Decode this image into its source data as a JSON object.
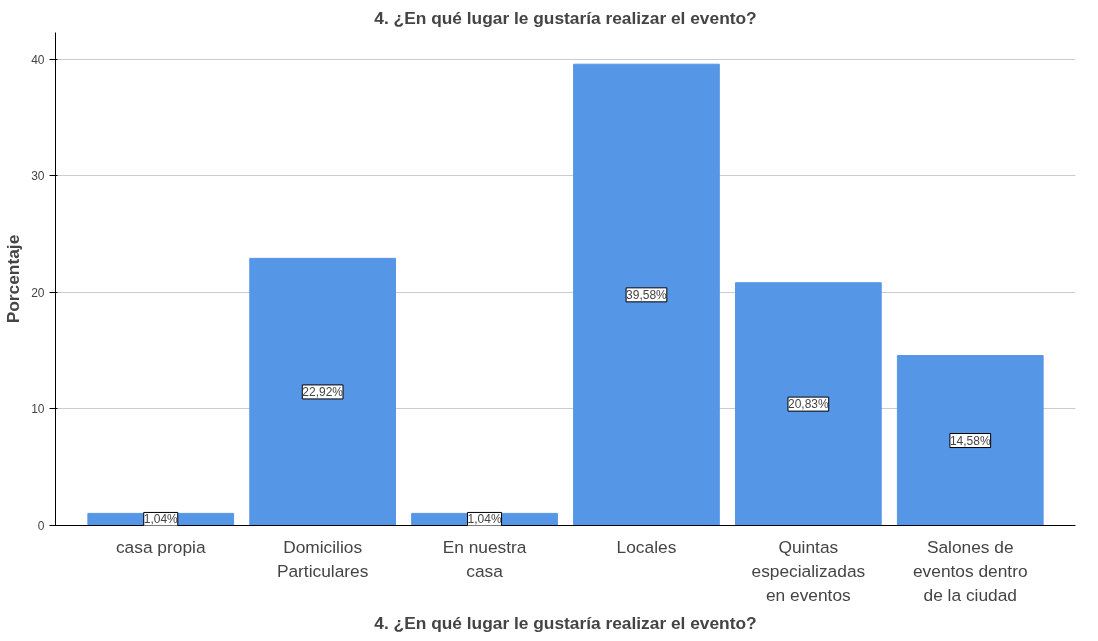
{
  "chart_data": {
    "type": "bar",
    "title": "4. ¿En qué lugar le gustaría realizar el evento?",
    "xlabel": "4. ¿En qué lugar le gustaría realizar el evento?",
    "ylabel": "Porcentaje",
    "categories": [
      "casa propia",
      "Domicilios Particulares",
      "En nuestra casa",
      "Locales",
      "Quintas especializadas en eventos",
      "Salones de eventos dentro de la ciudad"
    ],
    "values": [
      1.04,
      22.92,
      1.04,
      39.58,
      20.83,
      14.58
    ],
    "value_labels": [
      "1,04%",
      "22,92%",
      "1,04%",
      "39,58%",
      "20,83%",
      "14,58%"
    ],
    "color": "#5596e6",
    "ylim": [
      0,
      42.3
    ],
    "yticks": [
      0,
      10,
      20,
      30,
      40
    ],
    "grid": "y"
  }
}
